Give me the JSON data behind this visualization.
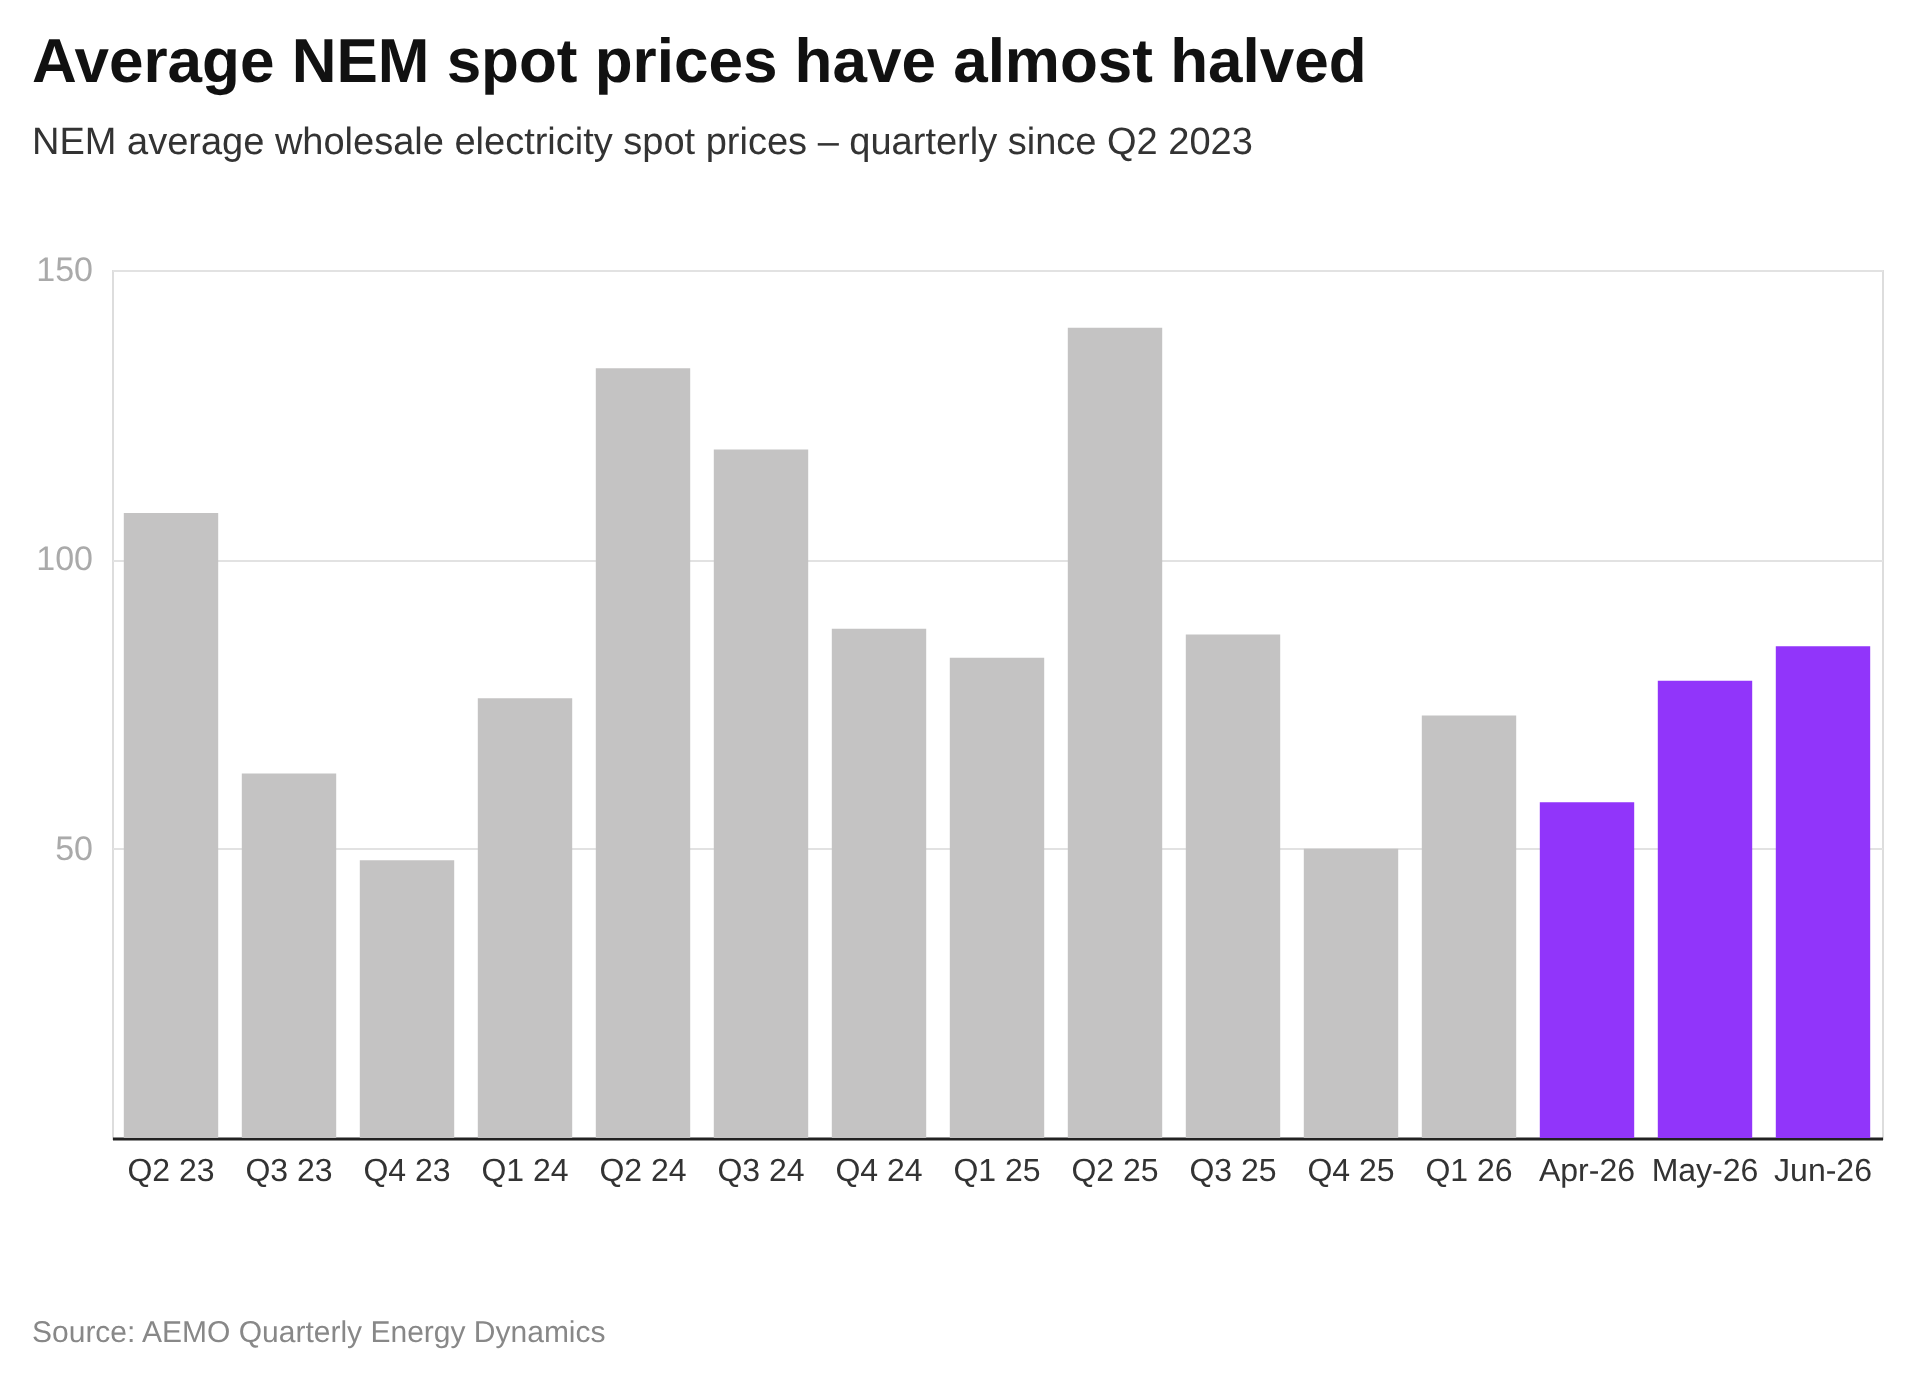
{
  "chart_data": {
    "type": "bar",
    "title": "Average NEM spot prices have almost halved",
    "subtitle": "NEM average wholesale electricity spot prices – quarterly since Q2 2023",
    "categories": [
      "Q2 23",
      "Q3 23",
      "Q4 23",
      "Q1 24",
      "Q2 24",
      "Q3 24",
      "Q4 24",
      "Q1 25",
      "Q2 25",
      "Q3 25",
      "Q4 25",
      "Q1 26",
      "Apr-26",
      "May-26",
      "Jun-26"
    ],
    "values": [
      108,
      63,
      48,
      76,
      133,
      119,
      88,
      83,
      140,
      87,
      50,
      73,
      58,
      79,
      85
    ],
    "colors": [
      "#c4c3c3",
      "#c4c3c3",
      "#c4c3c3",
      "#c4c3c3",
      "#c4c3c3",
      "#c4c3c3",
      "#c4c3c3",
      "#c4c3c3",
      "#c4c3c3",
      "#c4c3c3",
      "#c4c3c3",
      "#c4c3c3",
      "#9135fa",
      "#9135fa",
      "#9135fa"
    ],
    "ylim": [
      0,
      150
    ],
    "yticks": [
      {
        "value": 0,
        "label": null
      },
      50,
      100,
      150
    ],
    "grid": "y",
    "annotations": [
      "Source: AEMO Quarterly Energy Dynamics"
    ]
  }
}
